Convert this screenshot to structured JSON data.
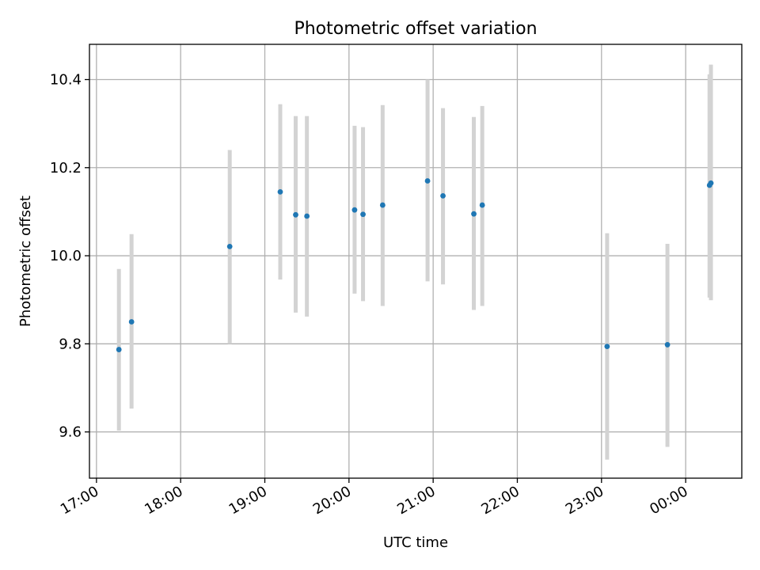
{
  "chart_data": {
    "type": "scatter",
    "title": "Photometric offset variation",
    "xlabel": "UTC time",
    "ylabel": "Photometric offset",
    "x_ticks": [
      "17:00",
      "18:00",
      "19:00",
      "20:00",
      "21:00",
      "22:00",
      "23:00",
      "00:00"
    ],
    "x_tick_times": [
      "2000-01-01 17:00",
      "2000-01-01 18:00",
      "2000-01-01 19:00",
      "2000-01-01 20:00",
      "2000-01-01 21:00",
      "2000-01-01 22:00",
      "2000-01-01 23:00",
      "2000-01-02 00:00"
    ],
    "x_range": [
      "2000-01-01 16:55",
      "2000-01-02 00:40"
    ],
    "y_ticks": [
      "9.6",
      "9.8",
      "10.0",
      "10.2",
      "10.4"
    ],
    "y_tick_values": [
      9.6,
      9.8,
      10.0,
      10.2,
      10.4
    ],
    "ylim": [
      9.495,
      10.48
    ],
    "grid": true,
    "marker_color": "#1f77b4",
    "errorbar_color": "#d3d3d3",
    "points": [
      {
        "t": "2000-01-01 17:16",
        "y": 9.787,
        "lo": 9.603,
        "hi": 9.97
      },
      {
        "t": "2000-01-01 17:25",
        "y": 9.85,
        "lo": 9.653,
        "hi": 10.049
      },
      {
        "t": "2000-01-01 18:35",
        "y": 10.021,
        "lo": 9.8,
        "hi": 10.24
      },
      {
        "t": "2000-01-01 19:11",
        "y": 10.145,
        "lo": 9.946,
        "hi": 10.344
      },
      {
        "t": "2000-01-01 19:22",
        "y": 10.093,
        "lo": 9.871,
        "hi": 10.317
      },
      {
        "t": "2000-01-01 19:30",
        "y": 10.09,
        "lo": 9.862,
        "hi": 10.317
      },
      {
        "t": "2000-01-01 20:04",
        "y": 10.104,
        "lo": 9.914,
        "hi": 10.295
      },
      {
        "t": "2000-01-01 20:10",
        "y": 10.094,
        "lo": 9.897,
        "hi": 10.292
      },
      {
        "t": "2000-01-01 20:24",
        "y": 10.115,
        "lo": 9.886,
        "hi": 10.342
      },
      {
        "t": "2000-01-01 20:56",
        "y": 10.17,
        "lo": 9.942,
        "hi": 10.4
      },
      {
        "t": "2000-01-01 21:07",
        "y": 10.136,
        "lo": 9.935,
        "hi": 10.335
      },
      {
        "t": "2000-01-01 21:29",
        "y": 10.095,
        "lo": 9.877,
        "hi": 10.315
      },
      {
        "t": "2000-01-01 21:35",
        "y": 10.115,
        "lo": 9.886,
        "hi": 10.34
      },
      {
        "t": "2000-01-01 23:04",
        "y": 9.794,
        "lo": 9.537,
        "hi": 10.051
      },
      {
        "t": "2000-01-01 23:47",
        "y": 9.798,
        "lo": 9.566,
        "hi": 10.027
      },
      {
        "t": "2000-01-02 00:17",
        "y": 10.16,
        "lo": 9.905,
        "hi": 10.412
      },
      {
        "t": "2000-01-02 00:18",
        "y": 10.165,
        "lo": 9.899,
        "hi": 10.434
      }
    ]
  }
}
